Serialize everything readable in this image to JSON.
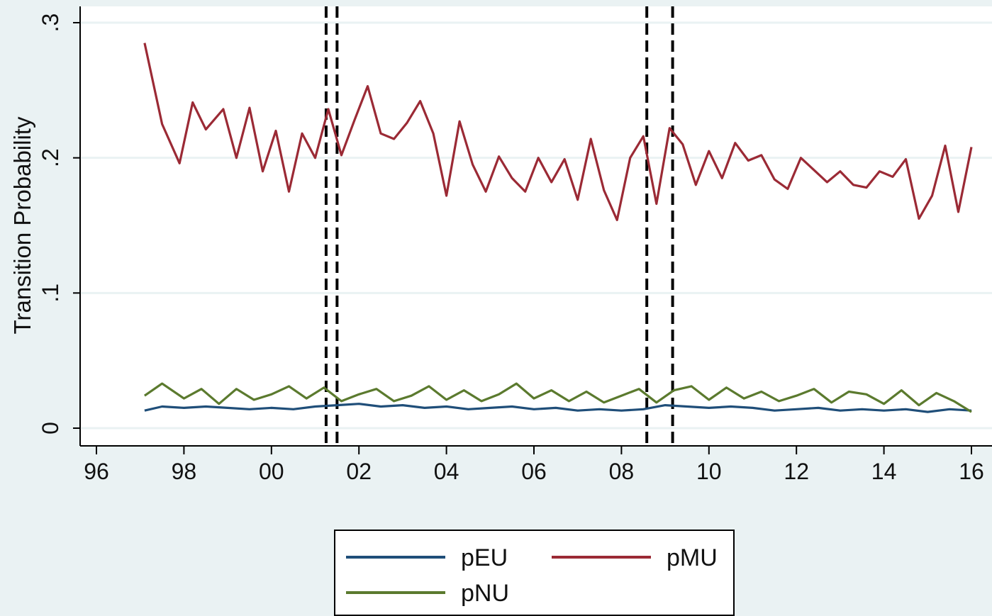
{
  "chart_data": {
    "type": "line",
    "title": "",
    "xlabel": "",
    "ylabel": "Transition Probability",
    "xlim": [
      1995.7,
      2016.1
    ],
    "ylim": [
      0,
      0.3
    ],
    "x_ticks": [
      {
        "value": 1996,
        "label": "96"
      },
      {
        "value": 1998,
        "label": "98"
      },
      {
        "value": 2000,
        "label": "00"
      },
      {
        "value": 2002,
        "label": "02"
      },
      {
        "value": 2004,
        "label": "04"
      },
      {
        "value": 2006,
        "label": "06"
      },
      {
        "value": 2008,
        "label": "08"
      },
      {
        "value": 2010,
        "label": "10"
      },
      {
        "value": 2012,
        "label": "12"
      },
      {
        "value": 2014,
        "label": "14"
      },
      {
        "value": 2016,
        "label": "16"
      }
    ],
    "y_ticks": [
      {
        "value": 0,
        "label": "0"
      },
      {
        "value": 0.1,
        "label": ".1"
      },
      {
        "value": 0.2,
        "label": ".2"
      },
      {
        "value": 0.3,
        "label": ".3"
      }
    ],
    "grid": "horizontal",
    "vertical_reference_lines": [
      2001.25,
      2001.5,
      2008.58,
      2009.17
    ],
    "legend_position": "bottom",
    "series": [
      {
        "name": "pEU",
        "color": "#1f4e79",
        "x": [
          1997.1,
          1997.5,
          1998.0,
          1998.5,
          1999.0,
          1999.5,
          2000.0,
          2000.5,
          2001.0,
          2001.5,
          2002.0,
          2002.5,
          2003.0,
          2003.5,
          2004.0,
          2004.5,
          2005.0,
          2005.5,
          2006.0,
          2006.5,
          2007.0,
          2007.5,
          2008.0,
          2008.5,
          2009.0,
          2009.5,
          2010.0,
          2010.5,
          2011.0,
          2011.5,
          2012.0,
          2012.5,
          2013.0,
          2013.5,
          2014.0,
          2014.5,
          2015.0,
          2015.5,
          2016.0
        ],
        "y": [
          0.013,
          0.016,
          0.015,
          0.016,
          0.015,
          0.014,
          0.015,
          0.014,
          0.016,
          0.017,
          0.018,
          0.016,
          0.017,
          0.015,
          0.016,
          0.014,
          0.015,
          0.016,
          0.014,
          0.015,
          0.013,
          0.014,
          0.013,
          0.014,
          0.017,
          0.016,
          0.015,
          0.016,
          0.015,
          0.013,
          0.014,
          0.015,
          0.013,
          0.014,
          0.013,
          0.014,
          0.012,
          0.014,
          0.013
        ]
      },
      {
        "name": "pMU",
        "color": "#9b2a35",
        "x": [
          1997.1,
          1997.5,
          1997.9,
          1998.2,
          1998.5,
          1998.9,
          1999.2,
          1999.5,
          1999.8,
          2000.1,
          2000.4,
          2000.7,
          2001.0,
          2001.3,
          2001.6,
          2001.9,
          2002.2,
          2002.5,
          2002.8,
          2003.1,
          2003.4,
          2003.7,
          2004.0,
          2004.3,
          2004.6,
          2004.9,
          2005.2,
          2005.5,
          2005.8,
          2006.1,
          2006.4,
          2006.7,
          2007.0,
          2007.3,
          2007.6,
          2007.9,
          2008.2,
          2008.5,
          2008.8,
          2009.1,
          2009.4,
          2009.7,
          2010.0,
          2010.3,
          2010.6,
          2010.9,
          2011.2,
          2011.5,
          2011.8,
          2012.1,
          2012.4,
          2012.7,
          2013.0,
          2013.3,
          2013.6,
          2013.9,
          2014.2,
          2014.5,
          2014.8,
          2015.1,
          2015.4,
          2015.7,
          2016.0
        ],
        "y": [
          0.285,
          0.225,
          0.196,
          0.241,
          0.221,
          0.236,
          0.2,
          0.237,
          0.19,
          0.22,
          0.175,
          0.218,
          0.2,
          0.236,
          0.202,
          0.228,
          0.253,
          0.218,
          0.214,
          0.226,
          0.242,
          0.218,
          0.172,
          0.227,
          0.195,
          0.175,
          0.201,
          0.185,
          0.175,
          0.2,
          0.182,
          0.199,
          0.169,
          0.214,
          0.176,
          0.154,
          0.2,
          0.216,
          0.166,
          0.222,
          0.21,
          0.18,
          0.205,
          0.185,
          0.211,
          0.198,
          0.202,
          0.184,
          0.177,
          0.2,
          0.191,
          0.182,
          0.19,
          0.18,
          0.178,
          0.19,
          0.186,
          0.199,
          0.155,
          0.172,
          0.209,
          0.16,
          0.208
        ]
      },
      {
        "name": "pNU",
        "color": "#5b7a2e",
        "x": [
          1997.1,
          1997.5,
          1998.0,
          1998.4,
          1998.8,
          1999.2,
          1999.6,
          2000.0,
          2000.4,
          2000.8,
          2001.2,
          2001.6,
          2002.0,
          2002.4,
          2002.8,
          2003.2,
          2003.6,
          2004.0,
          2004.4,
          2004.8,
          2005.2,
          2005.6,
          2006.0,
          2006.4,
          2006.8,
          2007.2,
          2007.6,
          2008.0,
          2008.4,
          2008.8,
          2009.2,
          2009.6,
          2010.0,
          2010.4,
          2010.8,
          2011.2,
          2011.6,
          2012.0,
          2012.4,
          2012.8,
          2013.2,
          2013.6,
          2014.0,
          2014.4,
          2014.8,
          2015.2,
          2015.6,
          2016.0
        ],
        "y": [
          0.024,
          0.033,
          0.022,
          0.029,
          0.018,
          0.029,
          0.021,
          0.025,
          0.031,
          0.022,
          0.03,
          0.02,
          0.025,
          0.029,
          0.02,
          0.024,
          0.031,
          0.021,
          0.028,
          0.02,
          0.025,
          0.033,
          0.022,
          0.028,
          0.02,
          0.027,
          0.019,
          0.024,
          0.029,
          0.019,
          0.028,
          0.031,
          0.021,
          0.03,
          0.022,
          0.027,
          0.02,
          0.024,
          0.029,
          0.019,
          0.027,
          0.025,
          0.018,
          0.028,
          0.017,
          0.026,
          0.02,
          0.012
        ]
      }
    ]
  }
}
